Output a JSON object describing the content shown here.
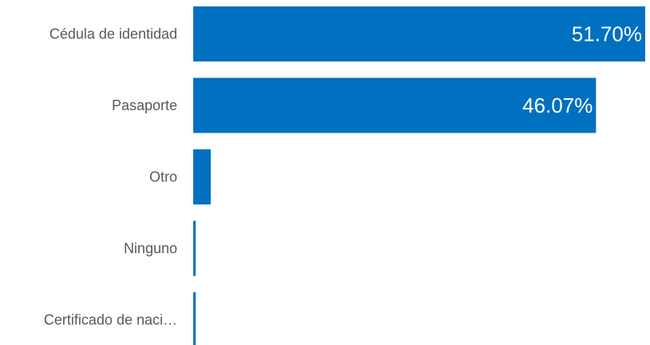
{
  "chart_data": {
    "type": "bar",
    "orientation": "horizontal",
    "categories": [
      "Cédula de identidad",
      "Pasaporte",
      "Otro",
      "Ninguno",
      "Certificado de naci…"
    ],
    "values": [
      51.7,
      46.07,
      2.0,
      0.2,
      0.2
    ],
    "data_labels": [
      "51.70%",
      "46.07%",
      "",
      "",
      ""
    ],
    "xlim": [
      0,
      51.7
    ],
    "grid": false,
    "legend": "none",
    "bar_color": "#0070C0",
    "label_color": "#595959",
    "data_label_color": "#ffffff"
  }
}
